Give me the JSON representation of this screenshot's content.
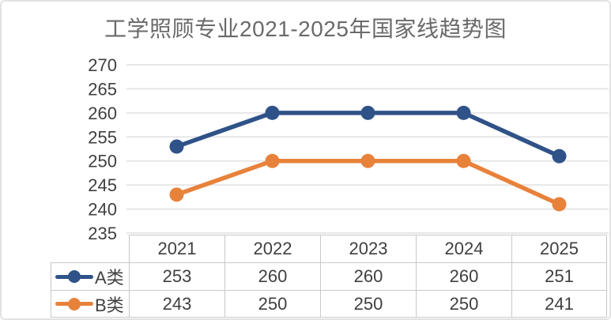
{
  "chart_data": {
    "type": "line",
    "title": "工学照顾专业2021-2025年国家线趋势图",
    "categories": [
      "2021",
      "2022",
      "2023",
      "2024",
      "2025"
    ],
    "series": [
      {
        "name": "A类",
        "color": "#2f5288",
        "marker": "circle",
        "values": [
          253,
          260,
          260,
          260,
          251
        ]
      },
      {
        "name": "B类",
        "color": "#e8823b",
        "marker": "circle",
        "values": [
          243,
          250,
          250,
          250,
          241
        ]
      }
    ],
    "xlabel": "",
    "ylabel": "",
    "ylim": [
      235,
      270
    ],
    "yticks": [
      270,
      265,
      260,
      255,
      250,
      245,
      240,
      235
    ],
    "grid": true,
    "legend_position": "table-left",
    "data_table_shown": true
  },
  "colors": {
    "title_text": "#6a6a6a",
    "axis_text": "#3f3f3f",
    "gridline": "#e7e7e7",
    "table_border": "#c9c9c9",
    "frame_border": "#e2e2e2",
    "background": "#ffffff"
  }
}
